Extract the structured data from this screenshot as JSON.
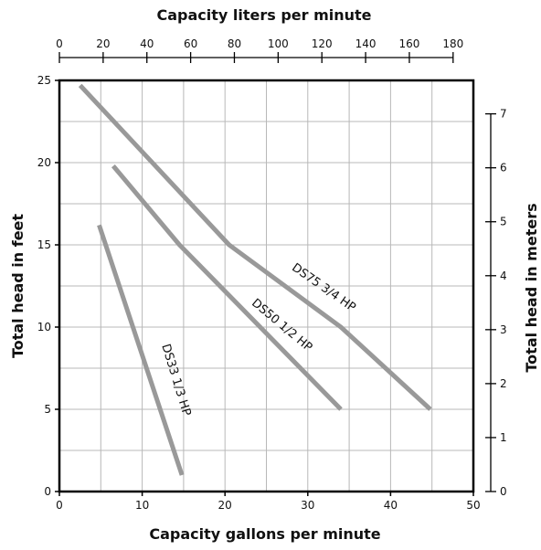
{
  "chart_data": {
    "type": "line",
    "top_axis_title": "Capacity liters per minute",
    "top_ticks": [
      0,
      20,
      40,
      60,
      80,
      100,
      120,
      140,
      160,
      180
    ],
    "x_axis_title": "Capacity gallons per minute",
    "x_ticks": [
      0,
      10,
      20,
      30,
      40,
      50
    ],
    "xlim": [
      0,
      50
    ],
    "y_axis_title": "Total head in feet",
    "y_ticks": [
      0,
      5,
      10,
      15,
      20,
      25
    ],
    "ylim": [
      0,
      25
    ],
    "right_axis_title": "Total head in meters",
    "right_ticks": [
      0,
      1,
      2,
      3,
      4,
      5,
      6,
      7
    ],
    "grid": true,
    "line_color": "#999999",
    "series": [
      {
        "name": "DS75 3/4 HP",
        "x": [
          2.5,
          20.5,
          34,
          44.8
        ],
        "y": [
          24.7,
          15,
          10,
          5
        ]
      },
      {
        "name": "DS50 1/2 HP",
        "x": [
          6.5,
          14.5,
          34
        ],
        "y": [
          19.8,
          15,
          5
        ]
      },
      {
        "name": "DS33 1/3 HP",
        "x": [
          4.8,
          14.8
        ],
        "y": [
          16.2,
          1
        ]
      }
    ]
  }
}
